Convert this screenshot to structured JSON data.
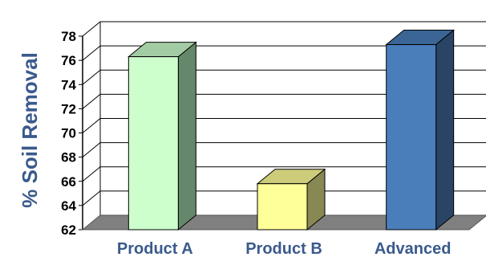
{
  "chart_data": {
    "type": "bar",
    "title": "",
    "xlabel": "",
    "ylabel": "% Soil Removal",
    "categories": [
      "Product A",
      "Product B",
      "Advanced"
    ],
    "values": [
      76.3,
      65.8,
      77.3
    ],
    "ylim": [
      62,
      78
    ],
    "yticks": [
      62,
      64,
      66,
      68,
      70,
      72,
      74,
      76,
      78
    ],
    "grid": true,
    "legend": "none",
    "colors": {
      "bars": [
        {
          "front": "#ccffcc",
          "top": "#a4cca4",
          "side": "#66886a"
        },
        {
          "front": "#ffff99",
          "top": "#cccc7a",
          "side": "#888855"
        },
        {
          "front": "#4a7ebb",
          "top": "#3b6595",
          "side": "#2a4466"
        }
      ],
      "label": "#3a5a8c",
      "floor": "#808080",
      "grid": "#000000"
    }
  }
}
